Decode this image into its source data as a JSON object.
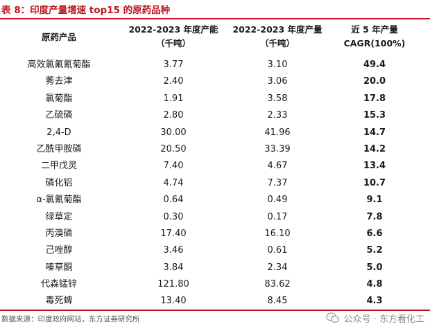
{
  "title": "表 8：印度产量增速 top15 的原药品种",
  "header": {
    "col0": "原药产品",
    "col1_line1": "2022-2023 年度产能",
    "col1_line2": "（千吨）",
    "col2_line1": "2022-2023 年度产量",
    "col2_line2": "（千吨）",
    "col3_line1": "近 5 年产量",
    "col3_line2": "CAGR(100%)"
  },
  "rows": [
    {
      "name": "高效氯氟氰菊酯",
      "capacity": "3.77",
      "output": "3.10",
      "cagr": "49.4"
    },
    {
      "name": "莠去津",
      "capacity": "2.40",
      "output": "3.06",
      "cagr": "20.0"
    },
    {
      "name": "氯菊酯",
      "capacity": "1.91",
      "output": "3.58",
      "cagr": "17.8"
    },
    {
      "name": "乙硫磷",
      "capacity": "2.80",
      "output": "2.33",
      "cagr": "15.3"
    },
    {
      "name": "2,4-D",
      "capacity": "30.00",
      "output": "41.96",
      "cagr": "14.7"
    },
    {
      "name": "乙酰甲胺磷",
      "capacity": "20.50",
      "output": "33.39",
      "cagr": "14.2"
    },
    {
      "name": "二甲戊灵",
      "capacity": "7.40",
      "output": "4.67",
      "cagr": "13.4"
    },
    {
      "name": "磷化铝",
      "capacity": "4.74",
      "output": "7.37",
      "cagr": "10.7"
    },
    {
      "name": "α-氯氰菊酯",
      "capacity": "0.64",
      "output": "0.49",
      "cagr": "9.1"
    },
    {
      "name": "绿草定",
      "capacity": "0.30",
      "output": "0.17",
      "cagr": "7.8"
    },
    {
      "name": "丙溴磷",
      "capacity": "17.40",
      "output": "16.10",
      "cagr": "6.6"
    },
    {
      "name": "己唑醇",
      "capacity": "3.46",
      "output": "0.61",
      "cagr": "5.2"
    },
    {
      "name": "嗪草酮",
      "capacity": "3.84",
      "output": "2.34",
      "cagr": "5.0"
    },
    {
      "name": "代森锰锌",
      "capacity": "121.80",
      "output": "83.62",
      "cagr": "4.8"
    },
    {
      "name": "毒死蜱",
      "capacity": "13.40",
      "output": "8.45",
      "cagr": "4.3"
    }
  ],
  "source": "数据来源：印度政府网站，东方证券研究所",
  "watermark": {
    "icon": "wechat-icon",
    "text": "公众号 · 东方看化工"
  },
  "colors": {
    "accent": "#c0141c"
  }
}
